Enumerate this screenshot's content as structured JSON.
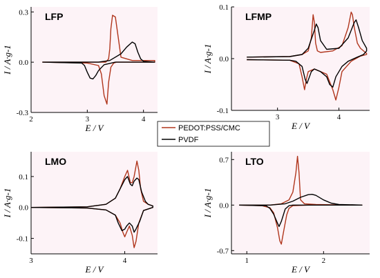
{
  "legend": {
    "entries": [
      {
        "name": "PEDOT:PSS/CMC",
        "color": "#b0351c"
      },
      {
        "name": "PVDF",
        "color": "#000000"
      }
    ]
  },
  "chart_data": [
    {
      "type": "line",
      "title": "LFP",
      "xlabel": "E / V",
      "ylabel": "I / A·g-1",
      "xlim": [
        2.0,
        4.25
      ],
      "ylim": [
        -0.3,
        0.33
      ],
      "xticks": [
        2,
        3,
        4
      ],
      "yticks": [
        -0.3,
        0.0,
        0.3
      ],
      "ytick_labels": [
        "-0.3",
        "0.0",
        "0.3"
      ],
      "series": [
        {
          "name": "PEDOT:PSS/CMC",
          "color": "#b0351c",
          "x": [
            2.2,
            3.0,
            3.2,
            3.33,
            3.38,
            3.4,
            3.42,
            3.45,
            3.5,
            3.6,
            3.8,
            4.2,
            4.2,
            3.8,
            3.65,
            3.6,
            3.57,
            3.55,
            3.52,
            3.47,
            3.42,
            3.38,
            3.35,
            3.3,
            3.25,
            3.2,
            3.0,
            2.2
          ],
          "y": [
            0,
            0,
            0,
            0,
            0.02,
            0.08,
            0.2,
            0.28,
            0.27,
            0.03,
            0.01,
            0.01,
            0,
            0,
            0,
            0,
            0,
            0,
            0,
            -0.005,
            -0.03,
            -0.12,
            -0.25,
            -0.2,
            -0.07,
            -0.02,
            -0.005,
            0
          ]
        },
        {
          "name": "PVDF",
          "color": "#000000",
          "x": [
            2.2,
            3.0,
            3.2,
            3.4,
            3.6,
            3.7,
            3.8,
            3.85,
            3.9,
            3.95,
            4.0,
            4.2,
            4.2,
            3.7,
            3.5,
            3.3,
            3.2,
            3.15,
            3.1,
            3.05,
            3.0,
            2.95,
            2.9,
            2.2
          ],
          "y": [
            0,
            0,
            0,
            0.01,
            0.05,
            0.09,
            0.12,
            0.11,
            0.06,
            0.02,
            0.005,
            0,
            0,
            0,
            0,
            -0.015,
            -0.05,
            -0.08,
            -0.1,
            -0.095,
            -0.06,
            -0.02,
            -0.005,
            0
          ]
        }
      ]
    },
    {
      "type": "line",
      "title": "LFMP",
      "xlabel": "E / V",
      "ylabel": "I / A·g-1",
      "xlim": [
        2.25,
        4.5
      ],
      "ylim": [
        -0.1,
        0.1
      ],
      "xticks": [
        3,
        4
      ],
      "yticks": [
        -0.1,
        0.0,
        0.1
      ],
      "ytick_labels": [
        "-0.1",
        "0.0",
        "0.1"
      ],
      "series": [
        {
          "name": "PEDOT:PSS/CMC",
          "color": "#b0351c",
          "x": [
            2.5,
            3.2,
            3.4,
            3.5,
            3.55,
            3.58,
            3.6,
            3.62,
            3.65,
            3.7,
            3.9,
            4.05,
            4.15,
            4.2,
            4.22,
            4.25,
            4.3,
            4.35,
            4.45,
            4.45,
            4.35,
            4.2,
            4.05,
            4.0,
            3.95,
            3.9,
            3.8,
            3.6,
            3.5,
            3.47,
            3.44,
            3.4,
            3.35,
            3.2,
            2.5
          ],
          "y": [
            0.003,
            0.004,
            0.008,
            0.015,
            0.04,
            0.085,
            0.07,
            0.03,
            0.015,
            0.012,
            0.015,
            0.025,
            0.06,
            0.09,
            0.085,
            0.06,
            0.03,
            0.02,
            0.01,
            0.008,
            0.005,
            -0.005,
            -0.025,
            -0.055,
            -0.08,
            -0.06,
            -0.03,
            -0.02,
            -0.025,
            -0.04,
            -0.06,
            -0.035,
            -0.01,
            -0.003,
            -0.002
          ]
        },
        {
          "name": "PVDF",
          "color": "#000000",
          "x": [
            2.5,
            3.2,
            3.4,
            3.5,
            3.6,
            3.63,
            3.66,
            3.7,
            3.8,
            4.0,
            4.15,
            4.25,
            4.28,
            4.32,
            4.38,
            4.45,
            4.45,
            4.4,
            4.3,
            4.15,
            4.05,
            3.95,
            3.9,
            3.85,
            3.8,
            3.7,
            3.6,
            3.55,
            3.52,
            3.48,
            3.45,
            3.4,
            3.3,
            3.2,
            2.5
          ],
          "y": [
            0.003,
            0.004,
            0.008,
            0.02,
            0.055,
            0.067,
            0.06,
            0.035,
            0.018,
            0.02,
            0.04,
            0.07,
            0.075,
            0.06,
            0.035,
            0.02,
            0.015,
            0.008,
            0.003,
            -0.005,
            -0.015,
            -0.035,
            -0.055,
            -0.05,
            -0.035,
            -0.025,
            -0.02,
            -0.025,
            -0.035,
            -0.048,
            -0.04,
            -0.015,
            -0.005,
            -0.003,
            -0.002
          ]
        }
      ]
    },
    {
      "type": "line",
      "title": "LMO",
      "xlabel": "E / V",
      "ylabel": "I / A·g-1",
      "xlim": [
        3.0,
        4.35
      ],
      "ylim": [
        -0.15,
        0.18
      ],
      "xticks": [
        3,
        4
      ],
      "yticks": [
        -0.1,
        0.0,
        0.1
      ],
      "ytick_labels": [
        "-0.1",
        "0.0",
        "0.1"
      ],
      "series": [
        {
          "name": "PEDOT:PSS/CMC",
          "color": "#b0351c",
          "x": [
            3.0,
            3.6,
            3.8,
            3.9,
            3.95,
            4.0,
            4.03,
            4.06,
            4.08,
            4.1,
            4.13,
            4.15,
            4.17,
            4.2,
            4.25,
            4.3,
            4.3,
            4.2,
            4.15,
            4.12,
            4.1,
            4.08,
            4.05,
            4.02,
            4.0,
            3.98,
            3.95,
            3.9,
            3.8,
            3.6,
            3.0
          ],
          "y": [
            0,
            0.002,
            0.01,
            0.03,
            0.06,
            0.1,
            0.12,
            0.08,
            0.08,
            0.1,
            0.15,
            0.12,
            0.06,
            0.02,
            0.01,
            0.005,
            0,
            -0.01,
            -0.05,
            -0.11,
            -0.13,
            -0.09,
            -0.06,
            -0.08,
            -0.095,
            -0.08,
            -0.05,
            -0.025,
            -0.008,
            -0.002,
            0
          ]
        },
        {
          "name": "PVDF",
          "color": "#000000",
          "x": [
            3.0,
            3.6,
            3.8,
            3.9,
            3.95,
            4.0,
            4.03,
            4.06,
            4.08,
            4.1,
            4.13,
            4.15,
            4.18,
            4.22,
            4.25,
            4.3,
            4.3,
            4.2,
            4.16,
            4.12,
            4.1,
            4.08,
            4.05,
            4.02,
            4.0,
            3.97,
            3.93,
            3.9,
            3.8,
            3.6,
            3.0
          ],
          "y": [
            0,
            0.002,
            0.01,
            0.03,
            0.06,
            0.09,
            0.1,
            0.075,
            0.07,
            0.085,
            0.095,
            0.09,
            0.05,
            0.02,
            0.01,
            0.005,
            0,
            -0.01,
            -0.045,
            -0.07,
            -0.08,
            -0.06,
            -0.05,
            -0.06,
            -0.07,
            -0.075,
            -0.05,
            -0.025,
            -0.008,
            -0.002,
            0
          ]
        }
      ]
    },
    {
      "type": "line",
      "title": "LTO",
      "xlabel": "E / V",
      "ylabel": "I / A·g-1",
      "xlim": [
        0.8,
        2.6
      ],
      "ylim": [
        -0.75,
        0.82
      ],
      "xticks": [
        1,
        2
      ],
      "yticks": [
        -0.7,
        0.0,
        0.7
      ],
      "ytick_labels": [
        "-0.7",
        "0.0",
        "0.7"
      ],
      "series": [
        {
          "name": "PEDOT:PSS/CMC",
          "color": "#b0351c",
          "x": [
            0.9,
            1.3,
            1.45,
            1.55,
            1.6,
            1.64,
            1.66,
            1.68,
            1.7,
            1.75,
            1.9,
            2.1,
            2.5,
            2.5,
            1.8,
            1.6,
            1.55,
            1.52,
            1.48,
            1.45,
            1.43,
            1.4,
            1.35,
            1.3,
            1.2,
            0.9
          ],
          "y": [
            0,
            0,
            0.02,
            0.08,
            0.2,
            0.5,
            0.75,
            0.5,
            0.08,
            0.02,
            0.01,
            0.005,
            0,
            0,
            0,
            -0.01,
            -0.05,
            -0.15,
            -0.4,
            -0.6,
            -0.55,
            -0.35,
            -0.12,
            -0.04,
            -0.01,
            0
          ]
        },
        {
          "name": "PVDF",
          "color": "#000000",
          "x": [
            0.9,
            1.3,
            1.5,
            1.6,
            1.7,
            1.8,
            1.85,
            1.9,
            2.0,
            2.1,
            2.2,
            2.5,
            2.5,
            1.8,
            1.6,
            1.55,
            1.5,
            1.45,
            1.42,
            1.4,
            1.35,
            1.3,
            1.25,
            0.9
          ],
          "y": [
            0,
            0,
            0.02,
            0.06,
            0.12,
            0.16,
            0.165,
            0.15,
            0.08,
            0.03,
            0.01,
            0,
            0,
            0,
            0,
            -0.01,
            -0.06,
            -0.25,
            -0.33,
            -0.28,
            -0.14,
            -0.05,
            -0.01,
            0
          ]
        }
      ]
    }
  ]
}
